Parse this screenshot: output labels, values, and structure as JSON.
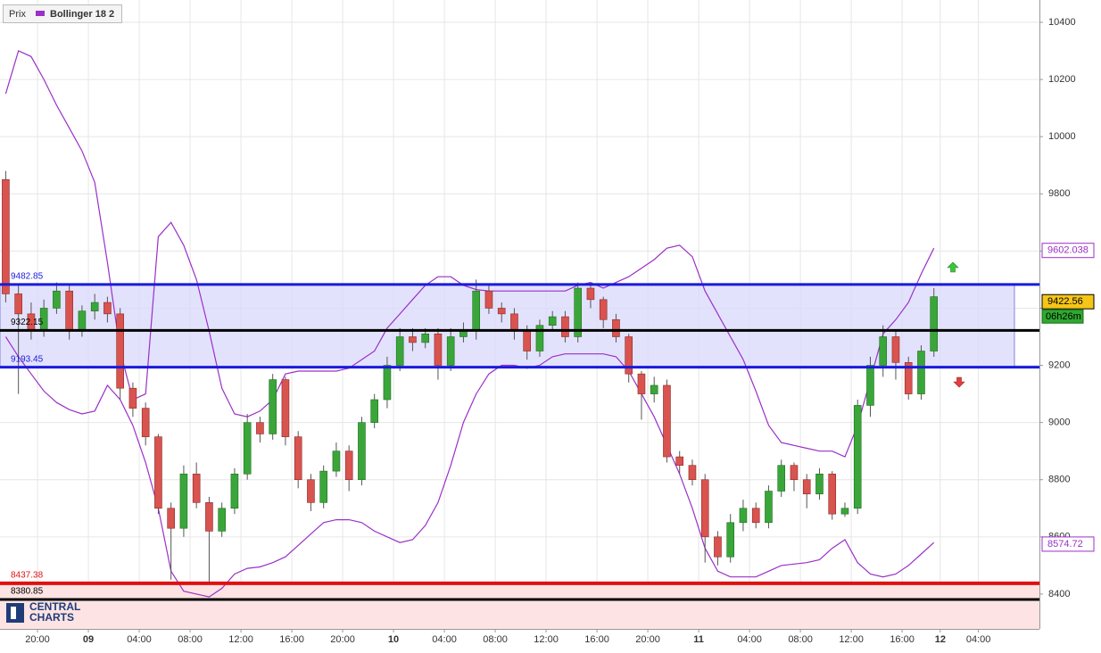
{
  "chart_data": {
    "type": "candlestick",
    "legend": {
      "labels": [
        "Prix",
        "Bollinger 18 2"
      ]
    },
    "logo": [
      "CENTRAL",
      "CHARTS"
    ],
    "x": [
      -2.5,
      -1.5,
      -0.5,
      0.5,
      1.5,
      2.5,
      3.5,
      4.5,
      5.5,
      6.5,
      7.5,
      8.5,
      9.5,
      10.5,
      11.5,
      12.5,
      13.5,
      14.5,
      15.5,
      16.5,
      17.5,
      18.5,
      19.5,
      20.5,
      21.5,
      22.5,
      23.5,
      24.5,
      25.5,
      26.5,
      27.5,
      28.5,
      29.5,
      30.5,
      31.5,
      32.5,
      33.5,
      34.5,
      35.5,
      36.5,
      37.5,
      38.5,
      39.5,
      40.5,
      41.5,
      42.5,
      43.5,
      44.5,
      45.5,
      46.5,
      47.5,
      48.5,
      49.5,
      50.5,
      51.5,
      52.5,
      53.5,
      54.5,
      55.5,
      56.5,
      57.5,
      58.5,
      59.5,
      60.5,
      61.5,
      62.5,
      63.5,
      64.5,
      65.5,
      66.5,
      67.5,
      68.5,
      69.5,
      70.5
    ],
    "candles": {
      "up_color": "#3aa63a",
      "down_color": "#d9534f",
      "open": [
        9850,
        9450,
        9380,
        9320,
        9400,
        9460,
        9320,
        9390,
        9420,
        9380,
        9120,
        9050,
        8950,
        8700,
        8630,
        8820,
        8720,
        8620,
        8700,
        8820,
        9000,
        8960,
        9150,
        8950,
        8800,
        8720,
        8830,
        8900,
        8800,
        9000,
        9080,
        9200,
        9300,
        9280,
        9310,
        9200,
        9300,
        9320,
        9460,
        9400,
        9380,
        9320,
        9250,
        9340,
        9370,
        9300,
        9470,
        9430,
        9360,
        9300,
        9170,
        9100,
        9130,
        8880,
        8850,
        8800,
        8600,
        8530,
        8650,
        8700,
        8650,
        8760,
        8850,
        8800,
        8750,
        8820,
        8680,
        8700,
        9060,
        9200,
        9300,
        9210,
        9100,
        9250
      ],
      "high": [
        9880,
        9480,
        9420,
        9430,
        9490,
        9480,
        9410,
        9450,
        9440,
        9400,
        9140,
        9070,
        8960,
        8720,
        8850,
        8860,
        8740,
        8720,
        8840,
        9030,
        9020,
        9170,
        9160,
        8970,
        8820,
        8850,
        8930,
        8920,
        9020,
        9100,
        9230,
        9330,
        9330,
        9330,
        9330,
        9330,
        9350,
        9500,
        9480,
        9420,
        9400,
        9340,
        9360,
        9390,
        9390,
        9490,
        9490,
        9440,
        9380,
        9310,
        9180,
        9160,
        9150,
        8900,
        8870,
        8820,
        8620,
        8680,
        8730,
        8720,
        8780,
        8870,
        8860,
        8820,
        8840,
        8830,
        8720,
        9080,
        9230,
        9340,
        9320,
        9230,
        9270,
        9470
      ],
      "low": [
        9420,
        9100,
        9290,
        9300,
        9380,
        9290,
        9300,
        9360,
        9350,
        9080,
        9020,
        8920,
        8680,
        8450,
        8600,
        8700,
        8440,
        8600,
        8680,
        8800,
        8930,
        8940,
        8920,
        8770,
        8690,
        8700,
        8810,
        8760,
        8780,
        8980,
        9050,
        9180,
        9250,
        9260,
        9150,
        9180,
        9280,
        9290,
        9380,
        9350,
        9290,
        9220,
        9230,
        9320,
        9280,
        9280,
        9400,
        9330,
        9280,
        9140,
        9010,
        9070,
        8860,
        8820,
        8780,
        8510,
        8500,
        8510,
        8620,
        8630,
        8630,
        8740,
        8760,
        8700,
        8730,
        8660,
        8670,
        8680,
        9020,
        9160,
        9150,
        9080,
        9080,
        9230
      ],
      "close": [
        9450,
        9380,
        9320,
        9400,
        9460,
        9320,
        9390,
        9420,
        9380,
        9120,
        9050,
        8950,
        8700,
        8630,
        8820,
        8720,
        8620,
        8700,
        8820,
        9000,
        8960,
        9150,
        8950,
        8800,
        8720,
        8830,
        8900,
        8800,
        9000,
        9080,
        9200,
        9300,
        9280,
        9310,
        9200,
        9300,
        9320,
        9460,
        9400,
        9380,
        9320,
        9250,
        9340,
        9370,
        9300,
        9470,
        9430,
        9360,
        9300,
        9170,
        9100,
        9130,
        8880,
        8850,
        8800,
        8600,
        8530,
        8650,
        8700,
        8650,
        8760,
        8850,
        8800,
        8750,
        8820,
        8680,
        8700,
        9060,
        9200,
        9300,
        9210,
        9100,
        9250,
        9440
      ]
    },
    "bands": {
      "color": "#9b30c8",
      "upper": [
        10150,
        10300,
        10280,
        10200,
        10110,
        10030,
        9950,
        9840,
        9560,
        9250,
        9080,
        9100,
        9650,
        9700,
        9620,
        9500,
        9320,
        9120,
        9030,
        9020,
        9040,
        9080,
        9170,
        9180,
        9180,
        9180,
        9180,
        9190,
        9220,
        9250,
        9330,
        9380,
        9430,
        9480,
        9510,
        9510,
        9480,
        9465,
        9460,
        9460,
        9460,
        9460,
        9460,
        9460,
        9460,
        9480,
        9490,
        9470,
        9490,
        9510,
        9540,
        9570,
        9610,
        9620,
        9580,
        9460,
        9380,
        9300,
        9220,
        9110,
        8990,
        8930,
        8920,
        8910,
        8900,
        8900,
        8880,
        8990,
        9150,
        9310,
        9360,
        9420,
        9520,
        9610
      ],
      "lower": [
        9300,
        9230,
        9170,
        9110,
        9070,
        9045,
        9030,
        9040,
        9130,
        9080,
        8990,
        8860,
        8700,
        8480,
        8410,
        8400,
        8390,
        8420,
        8470,
        8490,
        8495,
        8510,
        8530,
        8570,
        8610,
        8650,
        8660,
        8660,
        8650,
        8620,
        8600,
        8580,
        8590,
        8640,
        8720,
        8850,
        9000,
        9100,
        9170,
        9200,
        9200,
        9190,
        9200,
        9230,
        9240,
        9240,
        9240,
        9240,
        9230,
        9180,
        9100,
        9020,
        8920,
        8820,
        8700,
        8560,
        8480,
        8460,
        8460,
        8460,
        8480,
        8500,
        8505,
        8510,
        8520,
        8560,
        8590,
        8510,
        8470,
        8460,
        8470,
        8500,
        8540,
        8580
      ]
    },
    "levels": [
      {
        "value": 9482.85,
        "color": "#1a1adc"
      },
      {
        "value": 9322.15,
        "color": "#000000"
      },
      {
        "value": 9193.45,
        "color": "#1a1adc"
      },
      {
        "value": 8437.38,
        "color": "#e01010"
      },
      {
        "value": 8380.85,
        "color": "#000000"
      }
    ],
    "price_tags": [
      {
        "value": 9602.038,
        "color": "#9b30c8",
        "fill": "#ffffff"
      },
      {
        "value": 9422.56,
        "color": "#000000",
        "fill": "#f5c518"
      },
      {
        "value": 8574.72,
        "color": "#9b30c8",
        "fill": "#ffffff"
      }
    ],
    "countdown": "06h26m",
    "xlim": [
      -2.95,
      78.8
    ],
    "ylim": [
      8278,
      10478
    ],
    "yticks": [
      8400,
      8600,
      8800,
      9000,
      9200,
      9400,
      9600,
      9800,
      10000,
      10200,
      10400
    ],
    "xticks": [
      {
        "value": 0,
        "label": "20:00"
      },
      {
        "value": 4,
        "label": "09"
      },
      {
        "value": 8,
        "label": "04:00"
      },
      {
        "value": 12,
        "label": "08:00"
      },
      {
        "value": 16,
        "label": "12:00"
      },
      {
        "value": 20,
        "label": "16:00"
      },
      {
        "value": 24,
        "label": "20:00"
      },
      {
        "value": 28,
        "label": "10"
      },
      {
        "value": 32,
        "label": "04:00"
      },
      {
        "value": 36,
        "label": "08:00"
      },
      {
        "value": 40,
        "label": "12:00"
      },
      {
        "value": 44,
        "label": "16:00"
      },
      {
        "value": 48,
        "label": "20:00"
      },
      {
        "value": 52,
        "label": "11"
      },
      {
        "value": 56,
        "label": "04:00"
      },
      {
        "value": 60,
        "label": "08:00"
      },
      {
        "value": 64,
        "label": "12:00"
      },
      {
        "value": 68,
        "label": "16:00"
      },
      {
        "value": 71,
        "label": "12"
      },
      {
        "value": 74,
        "label": "04:00"
      }
    ],
    "grid": true
  }
}
